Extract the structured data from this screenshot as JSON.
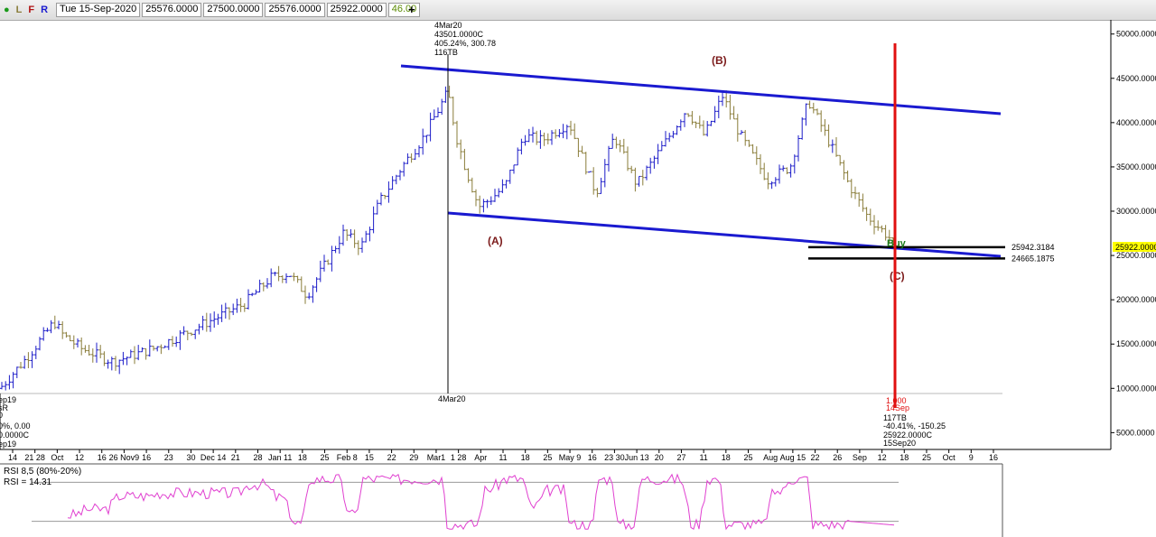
{
  "toolbar": {
    "icons": [
      "●",
      "L",
      "F",
      "R"
    ],
    "date": "Tue 15-Sep-2020",
    "open": "25576.0000",
    "high": "27500.0000",
    "low": "25576.0000",
    "close": "25922.0000",
    "extra": "46.00",
    "add_label": "+"
  },
  "chart_data": {
    "type": "bar",
    "y_axis": {
      "ticks": [
        "5000.0000",
        "10000.0000",
        "15000.0000",
        "20000.0000",
        "25000.0000",
        "30000.0000",
        "35000.0000",
        "40000.0000",
        "45000.0000",
        "50000.0000"
      ],
      "tick_values": [
        5000,
        10000,
        15000,
        20000,
        25000,
        30000,
        35000,
        40000,
        45000,
        50000
      ],
      "last_price_label": "25922.0000",
      "last_price": 25922
    },
    "x_axis_labels": [
      "14",
      "21 28",
      "Oct",
      "12",
      "16",
      "26 Nov9",
      "16",
      "23",
      "30",
      "Dec 14",
      "21",
      "28",
      "Jan 11",
      "18",
      "25",
      "Feb 8",
      "15",
      "22",
      "29",
      "Mar1",
      "1 28",
      "Apr",
      "11",
      "18",
      "25",
      "May 9",
      "16",
      "23 30",
      "Jun 13",
      "20",
      "27",
      "11",
      "18",
      "25",
      "Aug",
      "Aug 15",
      "22",
      "26",
      "Sep",
      "12",
      "18",
      "25",
      "Oct",
      "9",
      "16"
    ],
    "annotations": {
      "peak": [
        "4Mar20",
        "43501.0000C",
        "405.24%, 300.78",
        "116TB"
      ],
      "peak_axis": "4Mar20",
      "left_note": [
        "ep19",
        "sR",
        "0",
        "0%, 0.00",
        "0.0000C",
        "ep19"
      ],
      "cursor": [
        "1.000",
        "14Sep",
        "117TB",
        "-40.41%, -150.25",
        "25922.0000C",
        "15Sep20"
      ],
      "wave_A": "(A)",
      "wave_B": "(B)",
      "wave_C": "(C)",
      "buy": "Buy",
      "level_upper_label": "25942.3184",
      "level_lower_label": "24665.1875",
      "level_upper": 25942.3184,
      "level_lower": 24665.1875
    },
    "colors": {
      "up_bar": "#1c1cc8",
      "down_bar": "#8a7d3a",
      "channel": "#1a1ad0",
      "cursor_line": "#e01010",
      "rsi": "#e040d0"
    },
    "rsi": {
      "label": "RSI 8,5 (80%-20%)",
      "value_label": "RSI = 14.31",
      "value": 14.31,
      "levels": [
        80,
        20
      ]
    }
  }
}
